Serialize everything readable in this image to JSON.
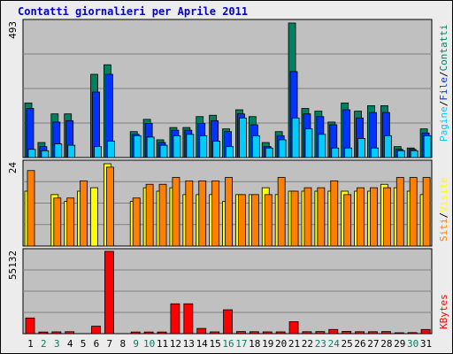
{
  "title": "Contatti giornalieri per Aprile 2011",
  "colors": {
    "pages": "#00ccff",
    "files": "#0033ff",
    "contacts": "#008060",
    "sites": "#ff8000",
    "visits": "#ffff00",
    "kbytes": "#ff0000",
    "weekday_label": "#000000",
    "weekend_label": "#008060",
    "panel_bg": "#c0c0c0"
  },
  "chart_data": [
    {
      "type": "bar",
      "panel": "top",
      "ymax_label": "493",
      "ymax": 493,
      "legend": [
        "Pagine",
        "File",
        "Contatti"
      ],
      "x": [
        1,
        2,
        3,
        4,
        5,
        6,
        7,
        8,
        9,
        10,
        11,
        12,
        13,
        14,
        15,
        16,
        17,
        18,
        19,
        20,
        21,
        22,
        23,
        24,
        25,
        26,
        27,
        28,
        29,
        30,
        31
      ],
      "series": [
        {
          "name": "Contatti",
          "values": [
            200,
            55,
            160,
            160,
            0,
            305,
            340,
            0,
            95,
            140,
            65,
            110,
            110,
            150,
            155,
            105,
            175,
            150,
            55,
            95,
            493,
            180,
            170,
            130,
            200,
            170,
            190,
            190,
            40,
            35,
            105
          ]
        },
        {
          "name": "File",
          "values": [
            180,
            40,
            130,
            135,
            0,
            240,
            305,
            0,
            85,
            125,
            55,
            100,
            100,
            125,
            135,
            95,
            160,
            120,
            40,
            80,
            315,
            160,
            150,
            120,
            175,
            145,
            165,
            165,
            30,
            30,
            90
          ]
        },
        {
          "name": "Pagine",
          "values": [
            30,
            25,
            50,
            45,
            0,
            40,
            60,
            0,
            80,
            75,
            45,
            80,
            85,
            80,
            60,
            40,
            145,
            80,
            35,
            65,
            145,
            105,
            85,
            35,
            35,
            70,
            35,
            80,
            25,
            25,
            80
          ]
        }
      ]
    },
    {
      "type": "bar",
      "panel": "middle",
      "ymax_label": "24",
      "ymax": 24,
      "legend": [
        "Siti",
        "Visite"
      ],
      "x": [
        1,
        2,
        3,
        4,
        5,
        6,
        7,
        8,
        9,
        10,
        11,
        12,
        13,
        14,
        15,
        16,
        17,
        18,
        19,
        20,
        21,
        22,
        23,
        24,
        25,
        26,
        27,
        28,
        29,
        30,
        31
      ],
      "series": [
        {
          "name": "Visite",
          "values": [
            16,
            0,
            15,
            13,
            16,
            17,
            24,
            0,
            13,
            17,
            16,
            17,
            15,
            15,
            15,
            13,
            15,
            15,
            17,
            15,
            16,
            16,
            16,
            16,
            16,
            16,
            16,
            18,
            17,
            16,
            15
          ]
        },
        {
          "name": "Siti",
          "values": [
            22,
            0,
            14,
            14,
            19,
            0,
            23,
            0,
            14,
            18,
            18,
            20,
            19,
            19,
            19,
            20,
            15,
            15,
            15,
            20,
            16,
            17,
            17,
            19,
            15,
            17,
            17,
            17,
            20,
            20,
            20
          ]
        }
      ]
    },
    {
      "type": "bar",
      "panel": "bottom",
      "ymax_label": "55132",
      "ymax": 55132,
      "legend": [
        "KBytes"
      ],
      "x": [
        1,
        2,
        3,
        4,
        5,
        6,
        7,
        8,
        9,
        10,
        11,
        12,
        13,
        14,
        15,
        16,
        17,
        18,
        19,
        20,
        21,
        22,
        23,
        24,
        25,
        26,
        27,
        28,
        29,
        30,
        31
      ],
      "series": [
        {
          "name": "KBytes",
          "values": [
            10500,
            1100,
            1200,
            1300,
            0,
            5000,
            55132,
            0,
            1100,
            1100,
            1100,
            20000,
            20000,
            3500,
            1200,
            16000,
            1400,
            1300,
            1200,
            1200,
            8000,
            1300,
            1400,
            2800,
            1500,
            1300,
            1300,
            1400,
            600,
            700,
            2800
          ]
        }
      ]
    }
  ],
  "x_labels": [
    "1",
    "2",
    "3",
    "4",
    "5",
    "6",
    "7",
    "8",
    "9",
    "10",
    "11",
    "12",
    "13",
    "14",
    "15",
    "16",
    "17",
    "18",
    "19",
    "20",
    "21",
    "22",
    "23",
    "24",
    "25",
    "26",
    "27",
    "28",
    "29",
    "30",
    "31"
  ],
  "weekend_days": [
    2,
    3,
    9,
    10,
    16,
    17,
    23,
    24,
    30
  ]
}
